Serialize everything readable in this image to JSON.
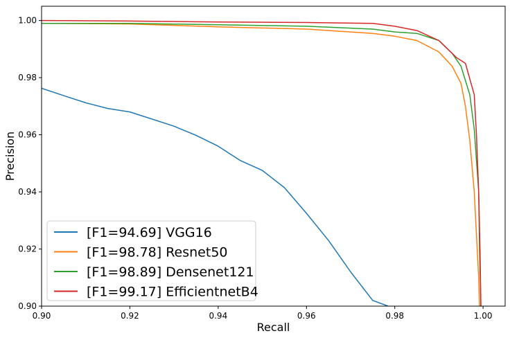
{
  "chart_data": {
    "type": "line",
    "title": "",
    "xlabel": "Recall",
    "ylabel": "Precision",
    "xlim": [
      0.9,
      1.005
    ],
    "ylim": [
      0.9,
      1.005
    ],
    "xticks": [
      "0.90",
      "0.92",
      "0.94",
      "0.96",
      "0.98",
      "1.00"
    ],
    "yticks": [
      "0.90",
      "0.92",
      "0.94",
      "0.96",
      "0.98",
      "1.00"
    ],
    "legend_position": "lower-left",
    "grid": false,
    "series": [
      {
        "name": "[F1=94.69] VGG16",
        "color": "#1f77b4",
        "x": [
          0.9,
          0.905,
          0.91,
          0.915,
          0.92,
          0.925,
          0.93,
          0.935,
          0.94,
          0.945,
          0.95,
          0.955,
          0.96,
          0.965,
          0.97,
          0.975,
          0.9785
        ],
        "y": [
          0.9763,
          0.9737,
          0.9712,
          0.9692,
          0.968,
          0.9655,
          0.963,
          0.9598,
          0.956,
          0.951,
          0.9475,
          0.9415,
          0.9325,
          0.923,
          0.912,
          0.902,
          0.9
        ]
      },
      {
        "name": "[F1=98.78] Resnet50",
        "color": "#ff7f0e",
        "x": [
          0.9,
          0.92,
          0.94,
          0.96,
          0.975,
          0.98,
          0.985,
          0.99,
          0.993,
          0.995,
          0.996,
          0.997,
          0.998,
          0.9985,
          0.999,
          0.9992
        ],
        "y": [
          0.999,
          0.9988,
          0.9978,
          0.997,
          0.9955,
          0.9945,
          0.993,
          0.989,
          0.984,
          0.978,
          0.97,
          0.958,
          0.94,
          0.925,
          0.91,
          0.9
        ]
      },
      {
        "name": "[F1=98.89] Densenet121",
        "color": "#2ca02c",
        "x": [
          0.9,
          0.92,
          0.94,
          0.96,
          0.975,
          0.98,
          0.985,
          0.99,
          0.993,
          0.995,
          0.997,
          0.998,
          0.999,
          0.9992,
          0.9995
        ],
        "y": [
          0.999,
          0.999,
          0.9985,
          0.998,
          0.997,
          0.996,
          0.9955,
          0.993,
          0.9885,
          0.984,
          0.974,
          0.962,
          0.94,
          0.92,
          0.9
        ]
      },
      {
        "name": "[F1=99.17] EfficientnetB4",
        "color": "#d62728",
        "x": [
          0.9,
          0.92,
          0.94,
          0.96,
          0.975,
          0.98,
          0.985,
          0.99,
          0.992,
          0.994,
          0.996,
          0.998,
          0.9985,
          0.999,
          0.9993,
          0.9995
        ],
        "y": [
          1.0,
          0.9998,
          0.9995,
          0.9993,
          0.999,
          0.998,
          0.9965,
          0.993,
          0.99,
          0.987,
          0.985,
          0.974,
          0.96,
          0.94,
          0.92,
          0.9
        ]
      }
    ]
  }
}
